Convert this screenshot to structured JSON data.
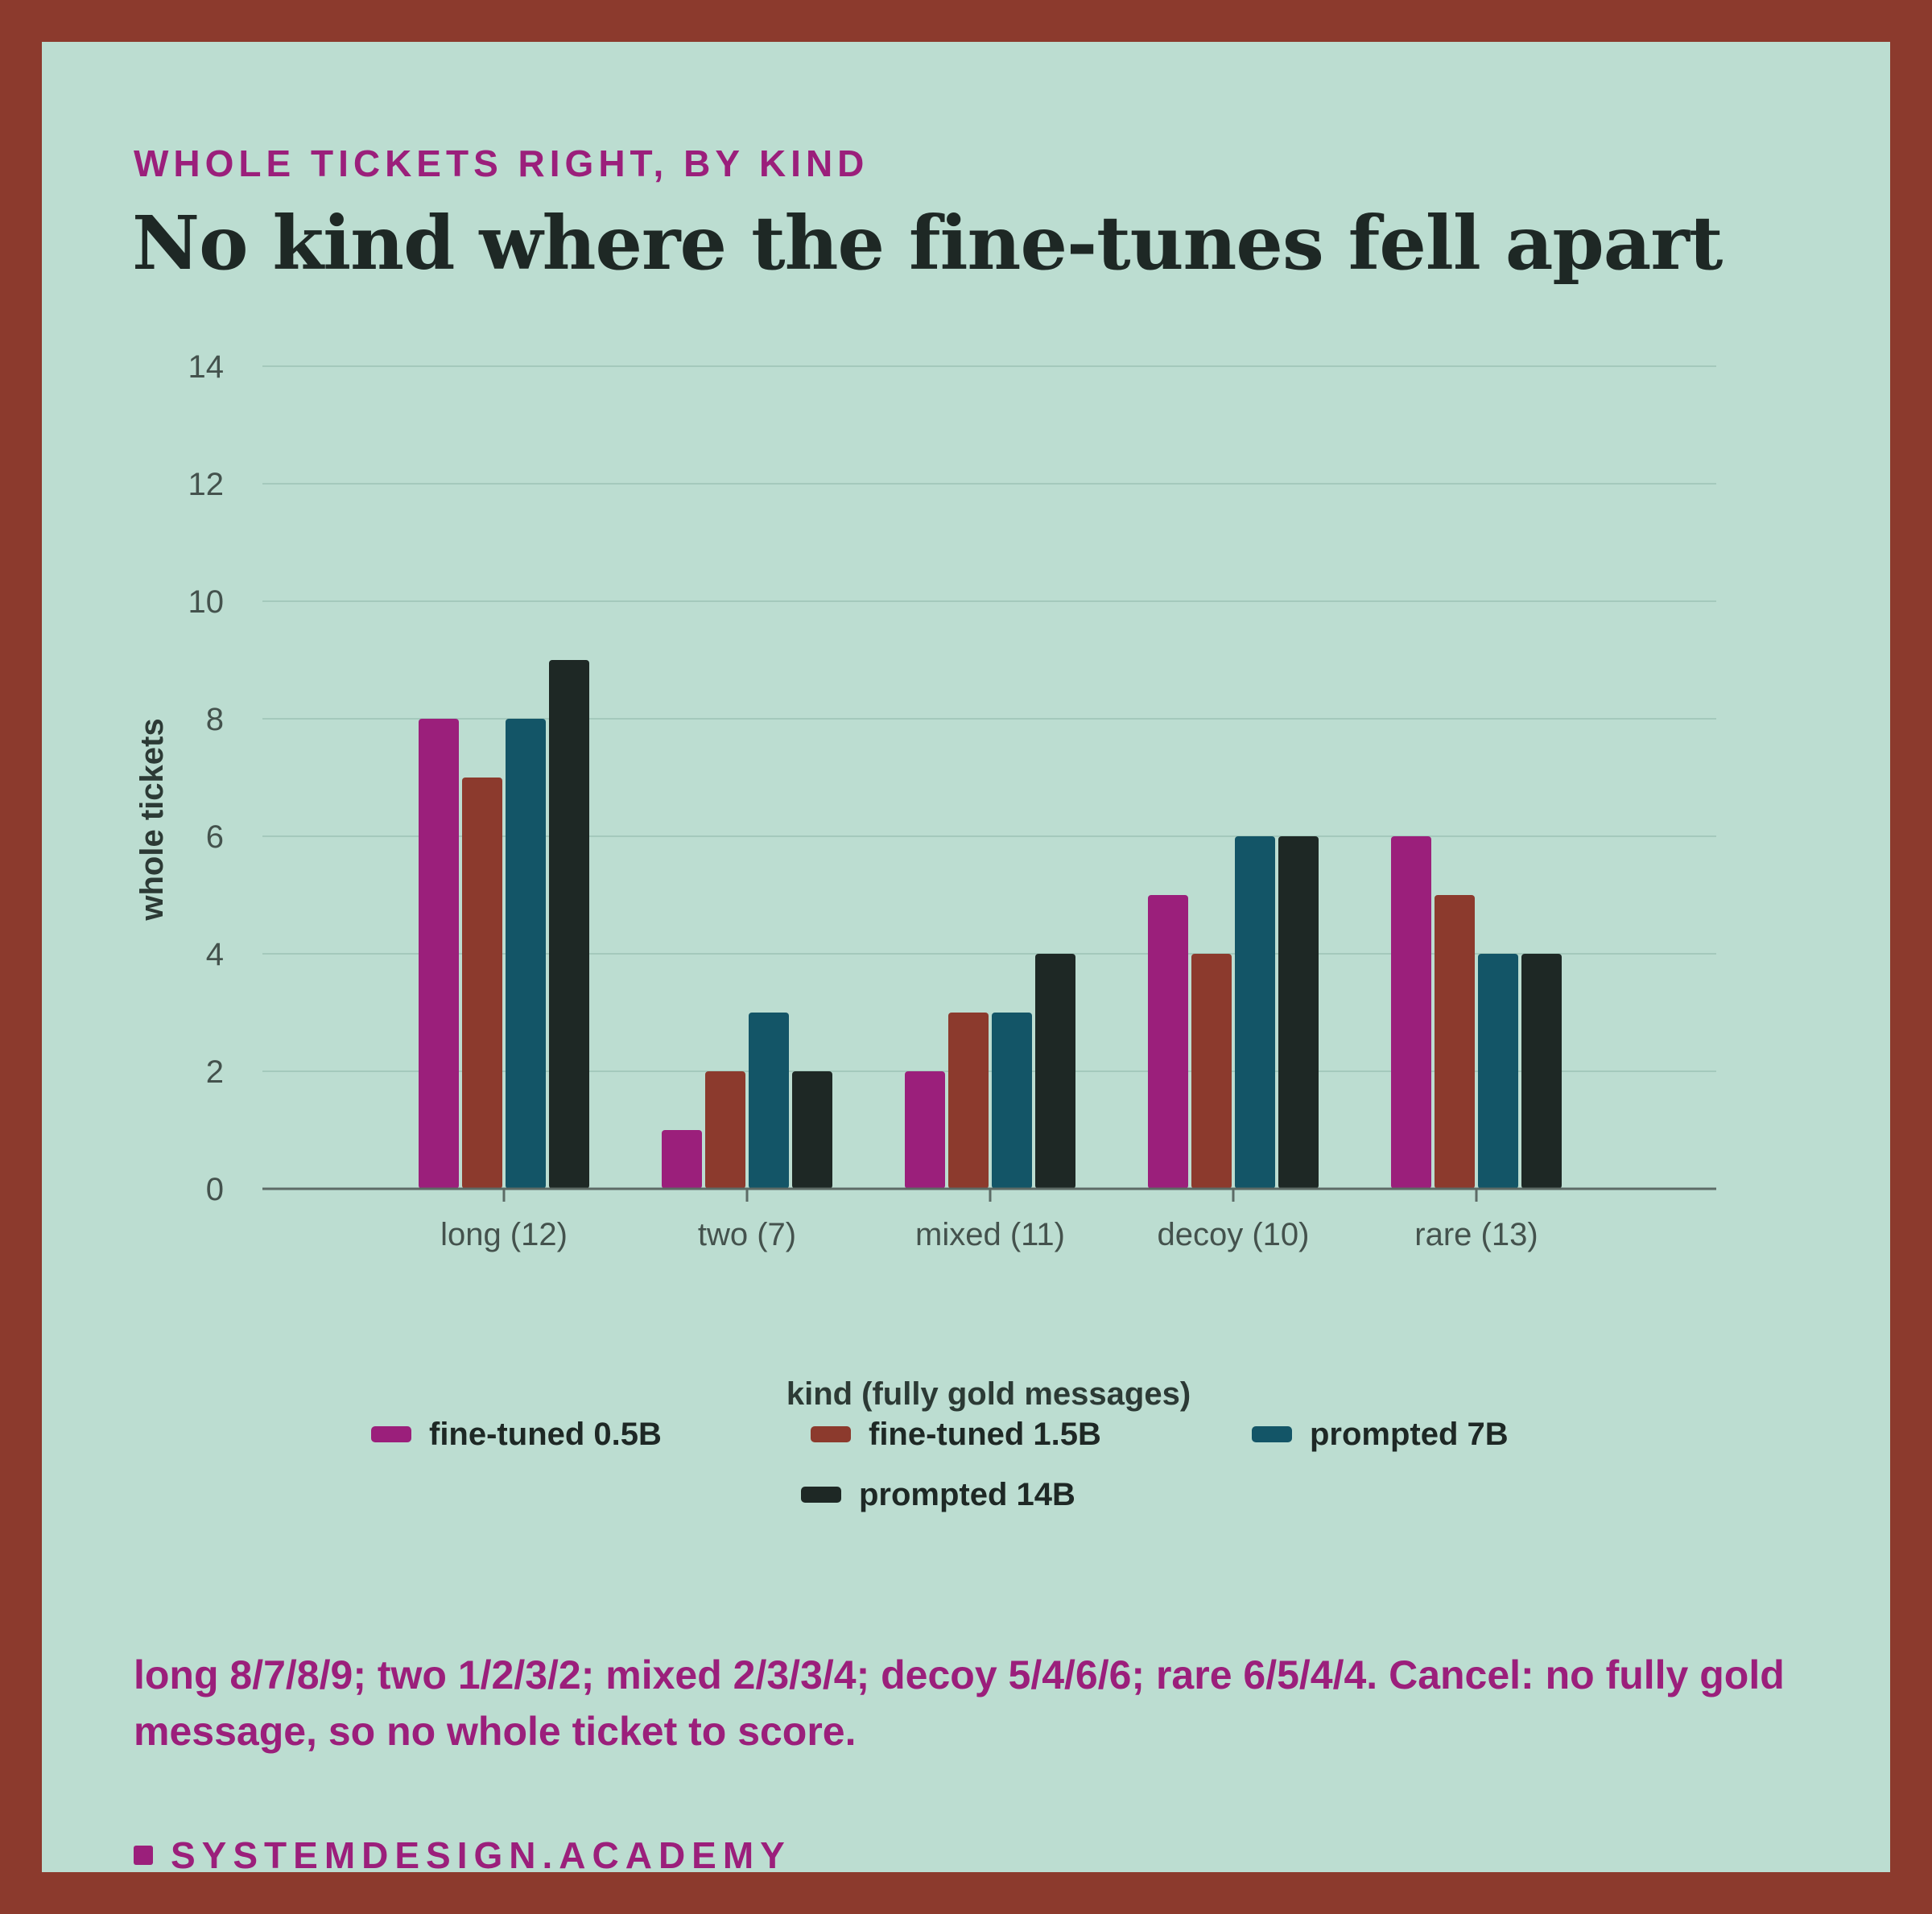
{
  "header": {
    "eyebrow": "WHOLE TICKETS RIGHT, BY KIND",
    "title": "No kind where the fine-tunes fell apart"
  },
  "chart_data": {
    "type": "bar",
    "categories": [
      "long (12)",
      "two (7)",
      "mixed (11)",
      "decoy (10)",
      "rare (13)"
    ],
    "series": [
      {
        "name": "fine-tuned 0.5B",
        "values": [
          8,
          1,
          2,
          5,
          6
        ],
        "color": "#9b1f7b"
      },
      {
        "name": "fine-tuned 1.5B",
        "values": [
          7,
          2,
          3,
          4,
          5
        ],
        "color": "#8c3a2d"
      },
      {
        "name": "prompted 7B",
        "values": [
          8,
          3,
          3,
          6,
          4
        ],
        "color": "#135567"
      },
      {
        "name": "prompted 14B",
        "values": [
          9,
          2,
          4,
          6,
          4
        ],
        "color": "#1e2825"
      }
    ],
    "ylim": [
      0,
      14
    ],
    "yticks": [
      0,
      2,
      4,
      6,
      8,
      10,
      12,
      14
    ],
    "xlabel": "kind (fully gold messages)",
    "ylabel": "whole tickets",
    "grid": true,
    "legend_position": "bottom"
  },
  "caption": "long 8/7/8/9; two 1/2/3/2; mixed 2/3/3/4; decoy 5/4/6/6; rare 6/5/4/4. Cancel: no fully gold message, so no whole ticket to score.",
  "footer": {
    "brand": "SYSTEMDESIGN.ACADEMY"
  }
}
